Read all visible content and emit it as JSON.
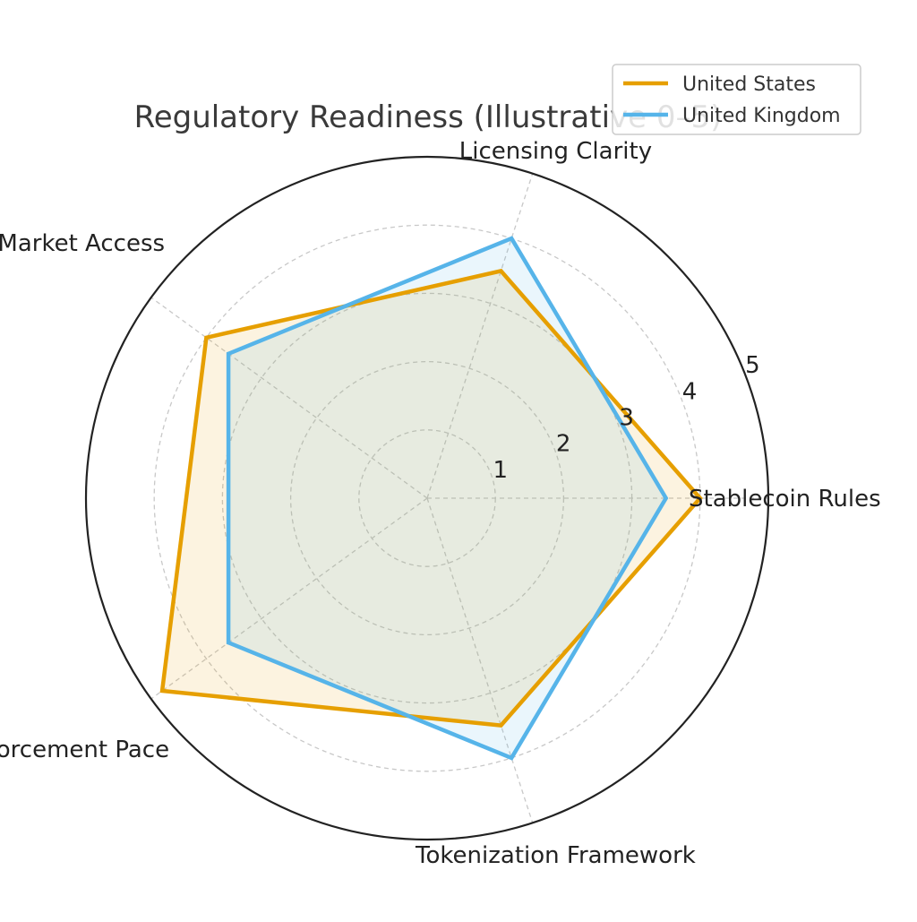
{
  "chart_data": {
    "type": "radar",
    "title": "Regulatory Readiness (Illustrative 0–5)",
    "axes": [
      "Stablecoin Rules",
      "Licensing Clarity",
      "Market Access",
      "Enforcement Pace",
      "Tokenization Framework"
    ],
    "rlim": [
      0,
      5
    ],
    "r_ticks": [
      "1",
      "2",
      "3",
      "4",
      "5"
    ],
    "grid": true,
    "legend_position": "top-right",
    "series": [
      {
        "name": "United States",
        "values": [
          4.0,
          3.5,
          4.0,
          4.8,
          3.5
        ],
        "color": "#E69F00"
      },
      {
        "name": "United Kingdom",
        "values": [
          3.5,
          4.0,
          3.6,
          3.6,
          4.0
        ],
        "color": "#56B4E9"
      }
    ]
  }
}
